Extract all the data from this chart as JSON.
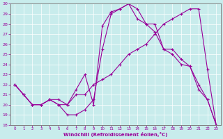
{
  "xlabel": "Windchill (Refroidissement éolien,°C)",
  "bg_color": "#c8ecec",
  "line_color": "#990099",
  "grid_color": "#ffffff",
  "xlim": [
    -0.5,
    23.5
  ],
  "ylim": [
    18,
    30
  ],
  "xticks": [
    0,
    1,
    2,
    3,
    4,
    5,
    6,
    7,
    8,
    9,
    10,
    11,
    12,
    13,
    14,
    15,
    16,
    17,
    18,
    19,
    20,
    21,
    22,
    23
  ],
  "yticks": [
    18,
    19,
    20,
    21,
    22,
    23,
    24,
    25,
    26,
    27,
    28,
    29,
    30
  ],
  "series1_x": [
    0,
    1,
    2,
    3,
    4,
    5,
    6,
    7,
    8,
    9,
    10,
    11,
    12,
    13,
    14,
    15,
    16,
    17,
    18,
    19,
    20,
    21,
    22,
    23
  ],
  "series1_y": [
    22,
    21,
    20,
    20,
    20.5,
    20.5,
    20,
    21,
    21,
    22,
    22.5,
    23,
    24,
    25,
    25.5,
    26,
    27,
    28,
    28.5,
    29,
    29.5,
    29.5,
    23.5,
    18
  ],
  "series2_x": [
    0,
    1,
    2,
    3,
    4,
    5,
    6,
    7,
    8,
    9,
    10,
    11,
    12,
    13,
    14,
    15,
    16,
    17,
    18,
    19,
    20,
    21,
    22,
    23
  ],
  "series2_y": [
    22,
    21,
    20,
    20,
    20.5,
    20,
    19.0,
    19.0,
    19.5,
    20.5,
    25.5,
    29.0,
    29.5,
    30,
    28.5,
    28,
    27.2,
    25.5,
    25.5,
    24.5,
    23.8,
    21.5,
    20.5,
    18
  ],
  "series3_x": [
    0,
    1,
    2,
    3,
    4,
    5,
    6,
    7,
    8,
    9,
    10,
    11,
    12,
    13,
    14,
    15,
    16,
    17,
    18,
    19,
    20,
    21,
    22,
    23
  ],
  "series3_y": [
    22,
    21,
    20,
    20,
    20.5,
    20,
    20,
    21.5,
    23.0,
    20,
    27.8,
    29.2,
    29.5,
    30,
    29.5,
    28,
    28,
    25.5,
    25.0,
    24.0,
    23.8,
    22.0,
    20.5,
    18
  ]
}
